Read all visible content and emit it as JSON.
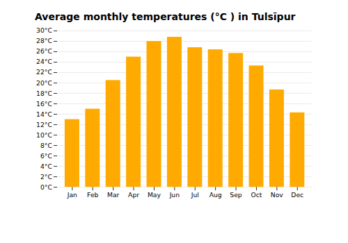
{
  "chart_data": {
    "type": "bar",
    "title": "Average monthly temperatures (°C ) in Tulsīpur",
    "categories": [
      "Jan",
      "Feb",
      "Mar",
      "Apr",
      "May",
      "Jun",
      "Jul",
      "Aug",
      "Sep",
      "Oct",
      "Nov",
      "Dec"
    ],
    "values": [
      13,
      15,
      20.5,
      25,
      28,
      28.8,
      26.8,
      26.4,
      25.7,
      23.3,
      18.7,
      14.3
    ],
    "color": "#FFAA00",
    "ylim": [
      0,
      30
    ],
    "yticks": [
      {
        "value": 0,
        "label": "0°C"
      },
      {
        "value": 2,
        "label": "2°C"
      },
      {
        "value": 4,
        "label": "4°C"
      },
      {
        "value": 6,
        "label": "6°C"
      },
      {
        "value": 8,
        "label": "8°C"
      },
      {
        "value": 10,
        "label": "10°C"
      },
      {
        "value": 12,
        "label": "12°C"
      },
      {
        "value": 14,
        "label": "14°C"
      },
      {
        "value": 16,
        "label": "16°C"
      },
      {
        "value": 18,
        "label": "18°C"
      },
      {
        "value": 20,
        "label": "20°C"
      },
      {
        "value": 22,
        "label": "22°C"
      },
      {
        "value": 24,
        "label": "24°C"
      },
      {
        "value": 26,
        "label": "26°C"
      },
      {
        "value": 28,
        "label": "28°C"
      },
      {
        "value": 30,
        "label": "30°C"
      }
    ],
    "grid": true
  }
}
